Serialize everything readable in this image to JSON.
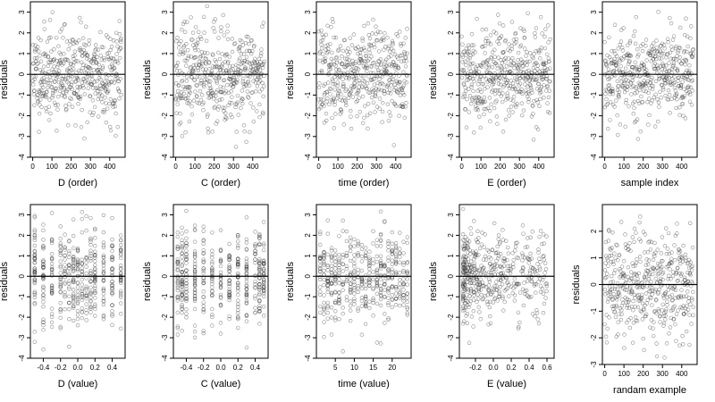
{
  "chart_data": [
    {
      "type": "scatter",
      "xlabel": "D (order)",
      "ylabel": "residuals",
      "xlim": [
        -12,
        480
      ],
      "ylim": [
        -4,
        3.5
      ],
      "xticks": [
        0,
        100,
        200,
        300,
        400
      ],
      "xtick_labels": [
        "0",
        "100",
        "200",
        "300",
        "400"
      ],
      "yticks": [
        -4,
        -3,
        -2,
        -1,
        0,
        1,
        2,
        3
      ],
      "ytick_labels": [
        "-4",
        "-3",
        "-2",
        "-1",
        "0",
        "1",
        "2",
        "3"
      ],
      "ref_line_y": 0,
      "point_color": "#333333",
      "x_kind": "index",
      "n": 460,
      "x_min": 0,
      "x_max": 460,
      "seed": 11
    },
    {
      "type": "scatter",
      "xlabel": "C (order)",
      "ylabel": "residuals",
      "xlim": [
        -12,
        480
      ],
      "ylim": [
        -4,
        3.5
      ],
      "xticks": [
        0,
        100,
        200,
        300,
        400
      ],
      "xtick_labels": [
        "0",
        "100",
        "200",
        "300",
        "400"
      ],
      "yticks": [
        -4,
        -3,
        -2,
        -1,
        0,
        1,
        2,
        3
      ],
      "ytick_labels": [
        "-4",
        "-3",
        "-2",
        "-1",
        "0",
        "1",
        "2",
        "3"
      ],
      "ref_line_y": 0,
      "point_color": "#333333",
      "x_kind": "index",
      "n": 460,
      "x_min": 0,
      "x_max": 460,
      "seed": 23
    },
    {
      "type": "scatter",
      "xlabel": "time (order)",
      "ylabel": "residuals",
      "xlim": [
        -12,
        480
      ],
      "ylim": [
        -4,
        3.5
      ],
      "xticks": [
        0,
        100,
        200,
        300,
        400
      ],
      "xtick_labels": [
        "0",
        "100",
        "200",
        "300",
        "400"
      ],
      "yticks": [
        -4,
        -3,
        -2,
        -1,
        0,
        1,
        2,
        3
      ],
      "ytick_labels": [
        "-4",
        "-3",
        "-2",
        "-1",
        "0",
        "1",
        "2",
        "3"
      ],
      "ref_line_y": 0,
      "point_color": "#333333",
      "x_kind": "index",
      "n": 460,
      "x_min": 0,
      "x_max": 460,
      "seed": 37
    },
    {
      "type": "scatter",
      "xlabel": "E (order)",
      "ylabel": "residuals",
      "xlim": [
        -12,
        480
      ],
      "ylim": [
        -4,
        3.5
      ],
      "xticks": [
        0,
        100,
        200,
        300,
        400
      ],
      "xtick_labels": [
        "0",
        "100",
        "200",
        "300",
        "400"
      ],
      "yticks": [
        -4,
        -3,
        -2,
        -1,
        0,
        1,
        2,
        3
      ],
      "ytick_labels": [
        "-4",
        "-3",
        "-2",
        "-1",
        "0",
        "1",
        "2",
        "3"
      ],
      "ref_line_y": 0,
      "point_color": "#333333",
      "x_kind": "index",
      "n": 460,
      "x_min": 0,
      "x_max": 460,
      "seed": 41
    },
    {
      "type": "scatter",
      "xlabel": "sample index",
      "ylabel": "residuals",
      "xlim": [
        -12,
        480
      ],
      "ylim": [
        -4,
        3.5
      ],
      "xticks": [
        0,
        100,
        200,
        300,
        400
      ],
      "xtick_labels": [
        "0",
        "100",
        "200",
        "300",
        "400"
      ],
      "yticks": [
        -4,
        -3,
        -2,
        -1,
        0,
        1,
        2,
        3
      ],
      "ytick_labels": [
        "-4",
        "-3",
        "-2",
        "-1",
        "0",
        "1",
        "2",
        "3"
      ],
      "ref_line_y": 0,
      "point_color": "#333333",
      "x_kind": "index",
      "n": 460,
      "x_min": 0,
      "x_max": 460,
      "seed": 53
    },
    {
      "type": "scatter",
      "xlabel": "D (value)",
      "ylabel": "residuals",
      "xlim": [
        -0.55,
        0.55
      ],
      "ylim": [
        -4,
        3.5
      ],
      "xticks": [
        -0.4,
        -0.2,
        0.0,
        0.2,
        0.4
      ],
      "xtick_labels": [
        "-0.4",
        "-0.2",
        "0.0",
        "0.2",
        "0.4"
      ],
      "yticks": [
        -4,
        -3,
        -2,
        -1,
        0,
        1,
        2,
        3
      ],
      "ytick_labels": [
        "-4",
        "-3",
        "-2",
        "-1",
        "0",
        "1",
        "2",
        "3"
      ],
      "ref_line_y": 0,
      "point_color": "#333333",
      "x_kind": "discrete",
      "n": 460,
      "x_levels": [
        -0.5,
        -0.4,
        -0.3,
        -0.2,
        -0.15,
        -0.1,
        -0.05,
        0.0,
        0.05,
        0.1,
        0.15,
        0.2,
        0.3,
        0.4,
        0.5
      ],
      "seed": 67
    },
    {
      "type": "scatter",
      "xlabel": "C (value)",
      "ylabel": "residuals",
      "xlim": [
        -0.55,
        0.55
      ],
      "ylim": [
        -4,
        3.5
      ],
      "xticks": [
        -0.4,
        -0.2,
        0.0,
        0.2,
        0.4
      ],
      "xtick_labels": [
        "-0.4",
        "-0.2",
        "0.0",
        "0.2",
        "0.4"
      ],
      "yticks": [
        -4,
        -3,
        -2,
        -1,
        0,
        1,
        2,
        3
      ],
      "ytick_labels": [
        "-4",
        "-3",
        "-2",
        "-1",
        "0",
        "1",
        "2",
        "3"
      ],
      "ref_line_y": 0,
      "point_color": "#333333",
      "x_kind": "discrete",
      "n": 460,
      "x_levels": [
        -0.5,
        -0.45,
        -0.4,
        -0.3,
        -0.2,
        -0.1,
        0.0,
        0.1,
        0.2,
        0.3,
        0.4,
        0.45,
        0.5
      ],
      "seed": 71
    },
    {
      "type": "scatter",
      "xlabel": "time (value)",
      "ylabel": "residuals",
      "xlim": [
        0,
        25
      ],
      "ylim": [
        -4,
        3.5
      ],
      "xticks": [
        5,
        10,
        15,
        20
      ],
      "xtick_labels": [
        "5",
        "10",
        "15",
        "20"
      ],
      "yticks": [
        -4,
        -3,
        -2,
        -1,
        0,
        1,
        2,
        3
      ],
      "ytick_labels": [
        "-4",
        "-3",
        "-2",
        "-1",
        "0",
        "1",
        "2",
        "3"
      ],
      "ref_line_y": 0,
      "point_color": "#333333",
      "x_kind": "discrete",
      "n": 460,
      "x_levels": [
        1,
        2,
        3,
        4,
        5,
        6,
        7,
        8,
        9,
        10,
        11,
        12,
        13,
        14,
        15,
        16,
        17,
        18,
        19,
        20,
        21,
        22,
        23,
        24
      ],
      "seed": 83
    },
    {
      "type": "scatter",
      "xlabel": "E (value)",
      "ylabel": "residuals",
      "xlim": [
        -0.38,
        0.68
      ],
      "ylim": [
        -4,
        3.5
      ],
      "xticks": [
        -0.2,
        0.0,
        0.2,
        0.4,
        0.6
      ],
      "xtick_labels": [
        "-0.2",
        "0.0",
        "0.2",
        "0.4",
        "0.6"
      ],
      "yticks": [
        -4,
        -3,
        -2,
        -1,
        0,
        1,
        2,
        3
      ],
      "ytick_labels": [
        "-4",
        "-3",
        "-2",
        "-1",
        "0",
        "1",
        "2",
        "3"
      ],
      "ref_line_y": 0,
      "point_color": "#333333",
      "x_kind": "skewed",
      "n": 460,
      "x_min": -0.34,
      "x_max": 0.6,
      "seed": 97
    },
    {
      "type": "scatter",
      "xlabel": "randam example",
      "ylabel": "residuals",
      "xlim": [
        -12,
        480
      ],
      "ylim": [
        -3,
        3
      ],
      "xticks": [
        0,
        100,
        200,
        300,
        400
      ],
      "xtick_labels": [
        "0",
        "100",
        "200",
        "300",
        "400"
      ],
      "yticks": [
        -3,
        -2,
        -1,
        0,
        1,
        2
      ],
      "ytick_labels": [
        "-3",
        "-2",
        "-1",
        "0",
        "1",
        "2"
      ],
      "ref_line_y": 0,
      "point_color": "#333333",
      "x_kind": "index",
      "n": 460,
      "x_min": 0,
      "x_max": 460,
      "seed": 101,
      "spread": 1.0
    }
  ]
}
